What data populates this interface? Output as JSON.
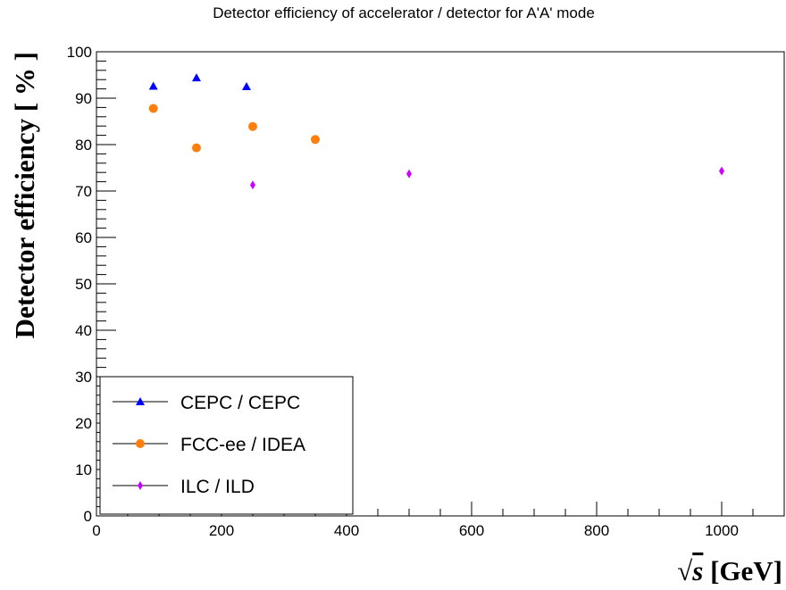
{
  "chart_data": {
    "type": "scatter",
    "title": "Detector efficiency of accelerator / detector for A'A' mode",
    "xlabel": "√s [GeV]",
    "xlabel_parts": {
      "sqrt": "√",
      "var": "s",
      "rest": " [GeV]"
    },
    "ylabel": "Detector efficiency [ % ]",
    "xlim": [
      0,
      1100
    ],
    "ylim": [
      0,
      100
    ],
    "xticks": [
      0,
      200,
      400,
      600,
      800,
      1000
    ],
    "yticks": [
      0,
      10,
      20,
      30,
      40,
      50,
      60,
      70,
      80,
      90,
      100
    ],
    "grid": false,
    "legend_position": "bottom-left",
    "series": [
      {
        "name": "CEPC / CEPC",
        "marker": "triangle",
        "color": "#0000ff",
        "points": [
          {
            "x": 91,
            "y": 92.6
          },
          {
            "x": 160,
            "y": 94.4
          },
          {
            "x": 240,
            "y": 92.5
          }
        ]
      },
      {
        "name": "FCC-ee / IDEA",
        "marker": "circle",
        "color": "#ff7f0e",
        "points": [
          {
            "x": 91,
            "y": 87.8
          },
          {
            "x": 160,
            "y": 79.3
          },
          {
            "x": 250,
            "y": 83.9
          },
          {
            "x": 350,
            "y": 81.1
          }
        ]
      },
      {
        "name": "ILC / ILD",
        "marker": "diamond",
        "color": "#cc00ff",
        "points": [
          {
            "x": 250,
            "y": 71.3
          },
          {
            "x": 500,
            "y": 73.7
          },
          {
            "x": 1000,
            "y": 74.3
          }
        ]
      }
    ]
  }
}
